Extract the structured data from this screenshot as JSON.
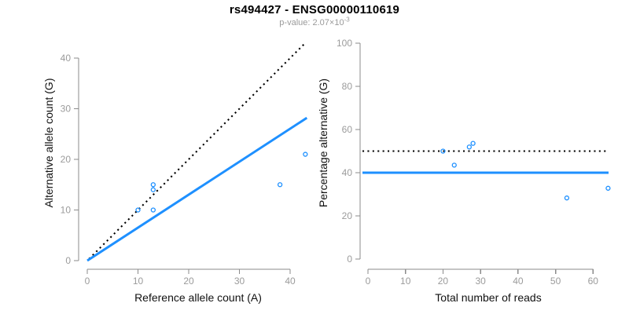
{
  "header": {
    "title": "rs494427 - ENSG00000110619",
    "pvalue_prefix": "p-value: ",
    "pvalue_base": "2.07×10",
    "pvalue_exponent": "-3"
  },
  "colors": {
    "accent_blue": "#1E90FF",
    "line_black": "#000000",
    "axis_gray": "#8b8b8b",
    "tick_label_gray": "#9b9b9b",
    "subtitle_gray": "#9a9a9a"
  },
  "chart_data": [
    {
      "id": "allele-counts",
      "type": "scatter",
      "title": "",
      "xlabel": "Reference allele count (A)",
      "ylabel": "Alternative allele count (G)",
      "xlim": [
        0,
        43.5
      ],
      "ylim": [
        0,
        43.5
      ],
      "xticks": [
        0,
        10,
        20,
        30,
        40
      ],
      "yticks": [
        0,
        10,
        20,
        30,
        40
      ],
      "grid": false,
      "legend": "none",
      "points": [
        {
          "x": 10,
          "y": 10
        },
        {
          "x": 13,
          "y": 10
        },
        {
          "x": 13,
          "y": 14
        },
        {
          "x": 13,
          "y": 15
        },
        {
          "x": 38,
          "y": 15
        },
        {
          "x": 43,
          "y": 21
        }
      ],
      "lines": [
        {
          "name": "identity-line",
          "style": "dotted",
          "color": "#000000",
          "x1": 0.35,
          "y1": 0.35,
          "x2": 42.8,
          "y2": 42.8
        },
        {
          "name": "fit-line",
          "style": "solid",
          "color": "#1E90FF",
          "x1": 0,
          "y1": 0,
          "x2": 43.3,
          "y2": 28.2
        }
      ]
    },
    {
      "id": "percentage-vs-reads",
      "type": "scatter",
      "title": "",
      "xlabel": "Total number of reads",
      "ylabel": "Percentage alternative (G)",
      "xlim": [
        0,
        64.5
      ],
      "ylim": [
        0,
        100
      ],
      "xticks": [
        0,
        10,
        20,
        30,
        40,
        50,
        60
      ],
      "yticks": [
        0,
        20,
        40,
        60,
        80,
        100
      ],
      "grid": false,
      "legend": "none",
      "points": [
        {
          "x": 20,
          "y": 50
        },
        {
          "x": 23,
          "y": 43.5
        },
        {
          "x": 27,
          "y": 51.9
        },
        {
          "x": 28,
          "y": 53.6
        },
        {
          "x": 53,
          "y": 28.3
        },
        {
          "x": 64,
          "y": 32.8
        }
      ],
      "lines": [
        {
          "name": "expected-50pct-line",
          "style": "dotted",
          "color": "#000000",
          "y": 50
        },
        {
          "name": "fit-40pct-line",
          "style": "solid",
          "color": "#1E90FF",
          "y": 40
        }
      ]
    }
  ]
}
